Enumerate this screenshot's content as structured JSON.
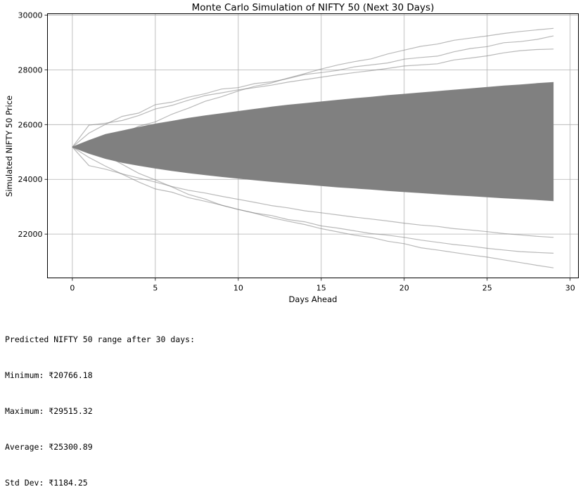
{
  "chart_data": {
    "type": "line",
    "title": "Monte Carlo Simulation of NIFTY 50 (Next 30 Days)",
    "xlabel": "Days Ahead",
    "ylabel": "Simulated NIFTY 50 Price",
    "xlim": [
      -1.5,
      30.5
    ],
    "ylim": [
      20400,
      30050
    ],
    "x_ticks": [
      0,
      5,
      10,
      15,
      20,
      25,
      30
    ],
    "y_ticks": [
      22000,
      24000,
      26000,
      28000,
      30000
    ],
    "grid": true,
    "series_color": "#808080",
    "start_value": 25180,
    "x": [
      0,
      1,
      2,
      3,
      4,
      5,
      6,
      7,
      8,
      9,
      10,
      11,
      12,
      13,
      14,
      15,
      16,
      17,
      18,
      19,
      20,
      21,
      22,
      23,
      24,
      25,
      26,
      27,
      28,
      29
    ],
    "series": [
      {
        "values": [
          25180,
          25420,
          25640,
          25770,
          25900,
          26020,
          26120,
          26230,
          26320,
          26400,
          26480,
          26560,
          26640,
          26710,
          26770,
          26830,
          26890,
          26950,
          27000,
          27060,
          27110,
          27160,
          27210,
          27260,
          27310,
          27360,
          27410,
          27450,
          27500,
          27540
        ]
      },
      {
        "values": [
          25180,
          24950,
          24760,
          24620,
          24510,
          24410,
          24320,
          24240,
          24170,
          24100,
          24040,
          23980,
          23920,
          23870,
          23820,
          23770,
          23720,
          23680,
          23640,
          23590,
          23550,
          23510,
          23470,
          23430,
          23400,
          23360,
          23320,
          23290,
          23260,
          23220
        ]
      },
      {
        "values": [
          25180,
          25980,
          26050,
          26150,
          26330,
          26570,
          26700,
          26890,
          27060,
          27160,
          27270,
          27350,
          27440,
          27550,
          27640,
          27730,
          27820,
          27900,
          27970,
          28050,
          28140,
          28180,
          28220,
          28360,
          28430,
          28510,
          28620,
          28700,
          28740,
          28760
        ]
      },
      {
        "values": [
          25180,
          24500,
          24370,
          24200,
          24050,
          23900,
          23740,
          23600,
          23500,
          23380,
          23270,
          23160,
          23040,
          22960,
          22850,
          22780,
          22700,
          22620,
          22550,
          22480,
          22400,
          22330,
          22280,
          22200,
          22150,
          22090,
          22020,
          21970,
          21920,
          21880
        ]
      },
      {
        "values": [
          25180,
          25690,
          26010,
          26300,
          26420,
          26730,
          26820,
          27000,
          27130,
          27300,
          27350,
          27500,
          27560,
          27680,
          27830,
          27900,
          27980,
          28110,
          28180,
          28250,
          28390,
          28450,
          28500,
          28660,
          28780,
          28850,
          28990,
          29030,
          29110,
          29240
        ]
      },
      {
        "values": [
          25180,
          24800,
          24480,
          24190,
          23900,
          23650,
          23530,
          23330,
          23200,
          23060,
          22900,
          22770,
          22680,
          22530,
          22450,
          22300,
          22220,
          22120,
          22020,
          21960,
          21880,
          21780,
          21700,
          21620,
          21560,
          21480,
          21420,
          21360,
          21330,
          21300
        ]
      },
      {
        "values": [
          25180,
          25200,
          25330,
          25650,
          25940,
          26100,
          26380,
          26600,
          26850,
          27020,
          27230,
          27400,
          27520,
          27700,
          27860,
          28030,
          28180,
          28300,
          28400,
          28580,
          28720,
          28860,
          28940,
          29080,
          29160,
          29240,
          29330,
          29400,
          29460,
          29515.32
        ]
      },
      {
        "values": [
          25180,
          25100,
          24880,
          24550,
          24220,
          23980,
          23720,
          23450,
          23280,
          23050,
          22900,
          22760,
          22600,
          22470,
          22350,
          22200,
          22080,
          21960,
          21880,
          21740,
          21650,
          21500,
          21420,
          21330,
          21240,
          21160,
          21060,
          20960,
          20860,
          20766.18
        ]
      }
    ]
  },
  "output": {
    "header": "Predicted NIFTY 50 range after 30 days:",
    "minimum": "Minimum: ₹20766.18",
    "maximum": "Maximum: ₹29515.32",
    "average": "Average: ₹25300.89",
    "std_dev": "Std Dev: ₹1184.25"
  }
}
